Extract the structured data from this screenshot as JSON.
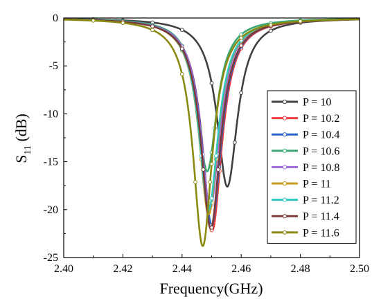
{
  "chart_data": {
    "type": "line",
    "xlabel": "Frequency(GHz)",
    "ylabel_main": "S",
    "ylabel_sub": "11",
    "ylabel_unit": " (dB)",
    "xlim": [
      2.4,
      2.5
    ],
    "ylim": [
      -25,
      0
    ],
    "xticks": [
      "2.40",
      "2.42",
      "2.44",
      "2.46",
      "2.48",
      "2.50"
    ],
    "yticks": [
      "0",
      "-5",
      "-10",
      "-15",
      "-20",
      "-25"
    ],
    "grid": false,
    "legend_position": "right",
    "series": [
      {
        "name": "P = 10",
        "color": "#404040",
        "f0": 2.4553,
        "min": -17.6,
        "w": 0.0042,
        "markers": [
          2.41,
          2.42,
          2.43,
          2.44,
          2.45,
          2.46,
          2.47,
          2.48
        ]
      },
      {
        "name": "P = 10.2",
        "color": "#ee3b3b",
        "f0": 2.4502,
        "min": -22.2,
        "w": 0.004,
        "markers": [
          2.41,
          2.42,
          2.43,
          2.44,
          2.45,
          2.46,
          2.47,
          2.48
        ]
      },
      {
        "name": "P = 10.4",
        "color": "#2a63c6",
        "f0": 2.45,
        "min": -21.6,
        "w": 0.004,
        "markers": [
          2.41,
          2.42,
          2.43,
          2.44,
          2.45,
          2.46,
          2.47,
          2.48
        ]
      },
      {
        "name": "P = 10.6",
        "color": "#3aa873",
        "f0": 2.4485,
        "min": -16.0,
        "w": 0.004,
        "markers": [
          2.41,
          2.42,
          2.43,
          2.44,
          2.45,
          2.46,
          2.47,
          2.48
        ]
      },
      {
        "name": "P = 10.8",
        "color": "#9b6bd9",
        "f0": 2.4495,
        "min": -19.8,
        "w": 0.004,
        "markers": [
          2.41,
          2.42,
          2.43,
          2.44,
          2.45,
          2.46,
          2.47,
          2.48
        ]
      },
      {
        "name": "P = 11",
        "color": "#c89a1a",
        "f0": 2.449,
        "min": -20.5,
        "w": 0.004,
        "markers": [
          2.41,
          2.42,
          2.43,
          2.44,
          2.45,
          2.46,
          2.47,
          2.48
        ]
      },
      {
        "name": "P = 11.2",
        "color": "#2ec8c0",
        "f0": 2.449,
        "min": -20.0,
        "w": 0.004,
        "markers": [
          2.41,
          2.42,
          2.43,
          2.44,
          2.45,
          2.46,
          2.47,
          2.48
        ]
      },
      {
        "name": "P = 11.4",
        "color": "#7a3b3b",
        "f0": 2.4497,
        "min": -22.0,
        "w": 0.004,
        "markers": [
          2.41,
          2.42,
          2.43,
          2.44,
          2.45,
          2.46,
          2.47,
          2.48
        ]
      },
      {
        "name": "P = 11.6",
        "color": "#8a8a10",
        "f0": 2.447,
        "min": -23.8,
        "w": 0.004,
        "markers": [
          2.41,
          2.42,
          2.43,
          2.44,
          2.45,
          2.46,
          2.47,
          2.48
        ]
      }
    ]
  }
}
